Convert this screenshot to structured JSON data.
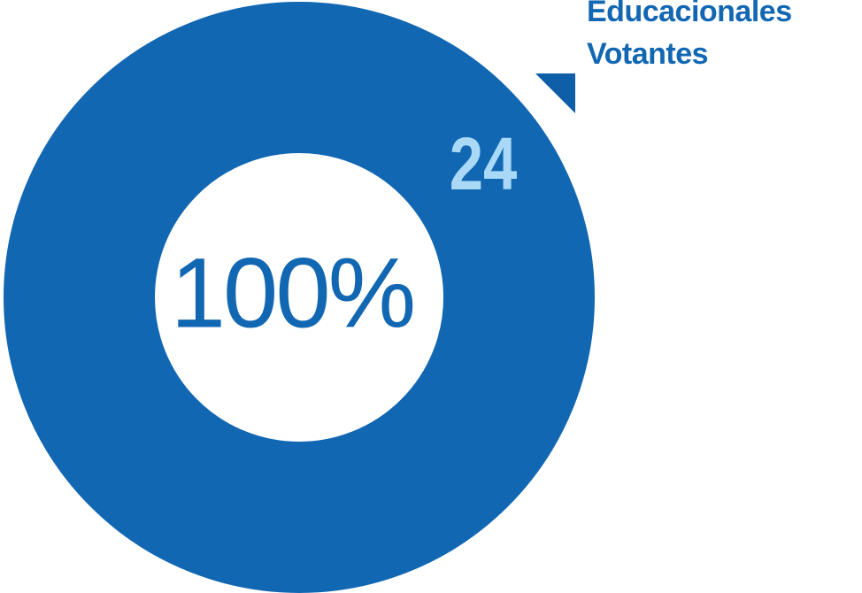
{
  "chart_data": {
    "type": "donut",
    "categories": [
      "Educacionales Votantes"
    ],
    "values": [
      100
    ],
    "value_labels": [
      "100%"
    ],
    "color": "#1267b3",
    "total": 24,
    "total_color": "#a9d9f6"
  }
}
